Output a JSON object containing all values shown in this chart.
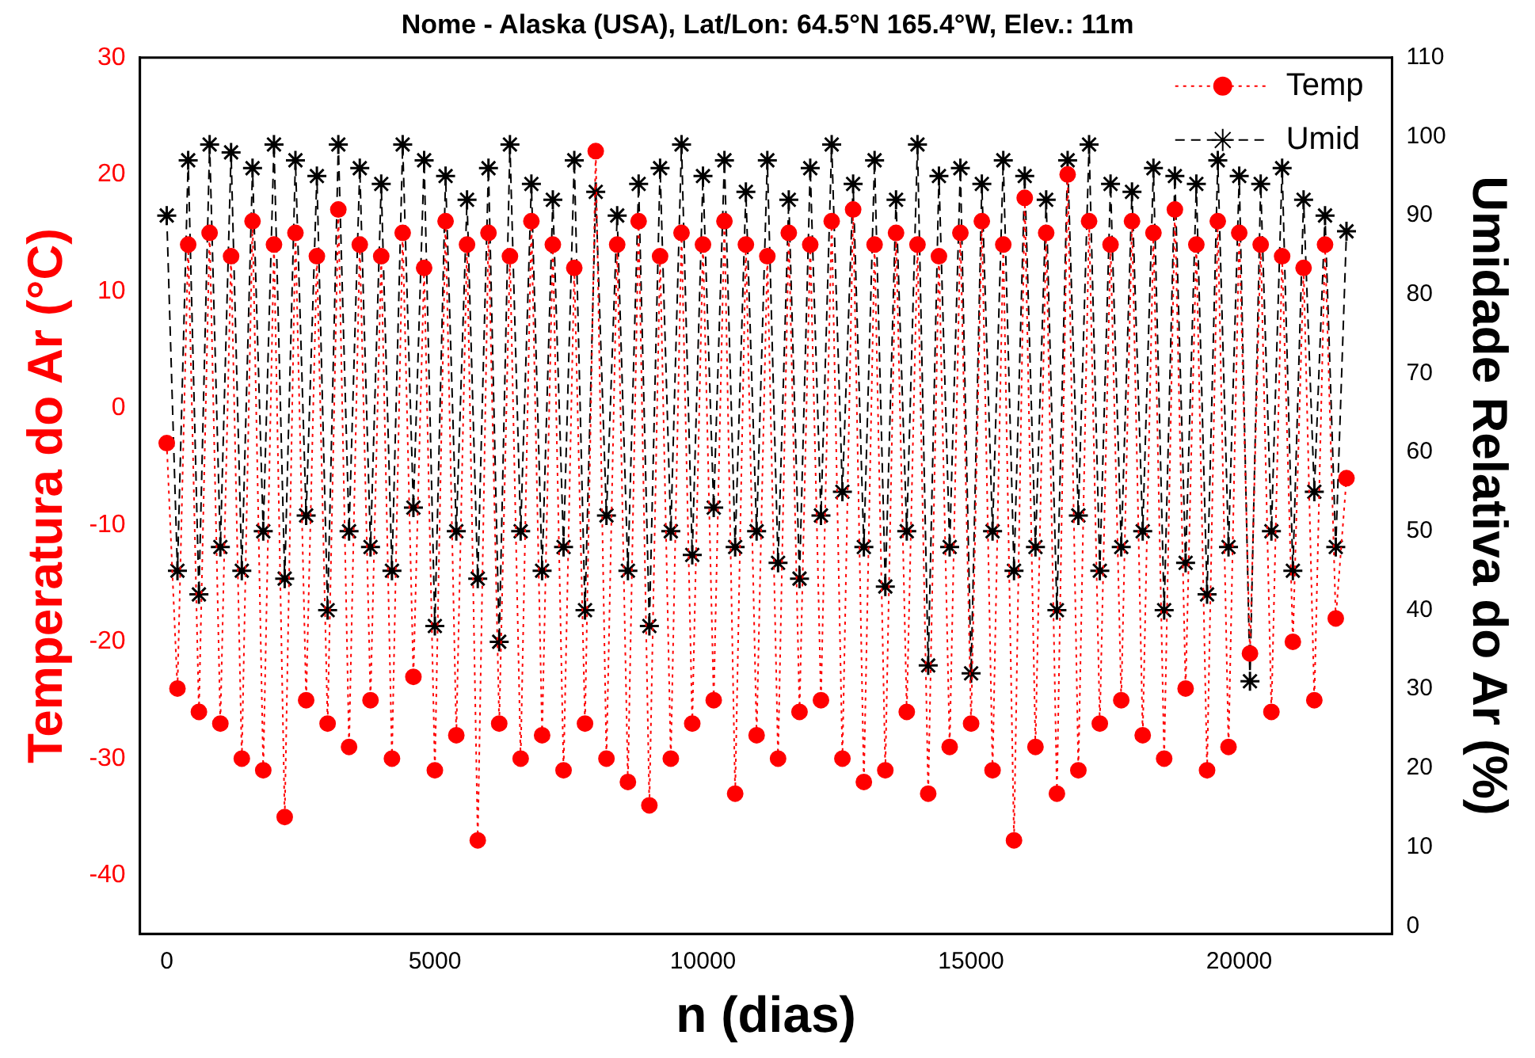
{
  "chart_data": {
    "type": "line",
    "title": "Nome - Alaska (USA), Lat/Lon: 64.5°N 165.4°W, Elev.: 11m",
    "xlabel": "n (dias)",
    "ylabel": "Temperatura do Ar (°C)",
    "y2label": "Umidade Relativa do Ar (%)",
    "x": [
      0,
      200,
      400,
      600,
      800,
      1000,
      1200,
      1400,
      1600,
      1800,
      2000,
      2200,
      2400,
      2600,
      2800,
      3000,
      3200,
      3400,
      3600,
      3800,
      4000,
      4200,
      4400,
      4600,
      4800,
      5000,
      5200,
      5400,
      5600,
      5800,
      6000,
      6200,
      6400,
      6600,
      6800,
      7000,
      7200,
      7400,
      7600,
      7800,
      8000,
      8200,
      8400,
      8600,
      8800,
      9000,
      9200,
      9400,
      9600,
      9800,
      10000,
      10200,
      10400,
      10600,
      10800,
      11000,
      11200,
      11400,
      11600,
      11800,
      12000,
      12200,
      12400,
      12600,
      12800,
      13000,
      13200,
      13400,
      13600,
      13800,
      14000,
      14200,
      14400,
      14600,
      14800,
      15000,
      15200,
      15400,
      15600,
      15800,
      16000,
      16200,
      16400,
      16600,
      16800,
      17000,
      17200,
      17400,
      17600,
      17800,
      18000,
      18200,
      18400,
      18600,
      18800,
      19000,
      19200,
      19400,
      19600,
      19800,
      20000,
      20200,
      20400,
      20600,
      20800,
      21000,
      21200,
      21400,
      21600,
      21800,
      22000
    ],
    "xlim": [
      -500,
      22850
    ],
    "xticks": [
      0,
      5000,
      10000,
      15000,
      20000
    ],
    "ylim": [
      -45,
      30
    ],
    "yticks": [
      -40,
      -30,
      -20,
      -10,
      0,
      10,
      20,
      30
    ],
    "y2lim": [
      -1,
      110
    ],
    "y2ticks": [
      0,
      10,
      20,
      30,
      40,
      50,
      60,
      70,
      80,
      90,
      100,
      110
    ],
    "legend": "top right",
    "grid": false,
    "series": [
      {
        "name": "Temp",
        "color": "#ff0000",
        "marker": "circle",
        "line_style": "dotted",
        "values": [
          -3,
          -24,
          14,
          -26,
          15,
          -27,
          13,
          -30,
          16,
          -31,
          14,
          -35,
          15,
          -25,
          13,
          -27,
          17,
          -29,
          14,
          -25,
          13,
          -30,
          15,
          -23,
          12,
          -31,
          16,
          -28,
          14,
          -37,
          15,
          -27,
          13,
          -30,
          16,
          -28,
          14,
          -31,
          12,
          -27,
          22,
          -30,
          14,
          -32,
          16,
          -34,
          13,
          -30,
          15,
          -27,
          14,
          -25,
          16,
          -33,
          14,
          -28,
          13,
          -30,
          15,
          -26,
          14,
          -25,
          16,
          -30,
          17,
          -32,
          14,
          -31,
          15,
          -26,
          14,
          -33,
          13,
          -29,
          15,
          -27,
          16,
          -31,
          14,
          -37,
          18,
          -29,
          15,
          -33,
          20,
          -31,
          16,
          -27,
          14,
          -25,
          16,
          -28,
          15,
          -30,
          17,
          -24,
          14,
          -31,
          16,
          -29,
          15,
          -21,
          14,
          -26,
          13,
          -20,
          12,
          -25,
          14,
          -18,
          -6
        ]
      },
      {
        "name": "Umid",
        "color": "#000000",
        "marker": "cross",
        "line_style": "dashed",
        "axis": "y2",
        "values": [
          90,
          45,
          97,
          42,
          99,
          48,
          98,
          45,
          96,
          50,
          99,
          44,
          97,
          52,
          95,
          40,
          99,
          50,
          96,
          48,
          94,
          45,
          99,
          53,
          97,
          38,
          95,
          50,
          92,
          44,
          96,
          36,
          99,
          50,
          94,
          45,
          92,
          48,
          97,
          40,
          93,
          52,
          90,
          45,
          94,
          38,
          96,
          50,
          99,
          47,
          95,
          53,
          97,
          48,
          93,
          50,
          97,
          46,
          92,
          44,
          96,
          52,
          99,
          55,
          94,
          48,
          97,
          43,
          92,
          50,
          99,
          33,
          95,
          48,
          96,
          32,
          94,
          50,
          97,
          45,
          95,
          48,
          92,
          40,
          97,
          52,
          99,
          45,
          94,
          48,
          93,
          50,
          96,
          40,
          95,
          46,
          94,
          42,
          97,
          48,
          95,
          31,
          94,
          50,
          96,
          45,
          92,
          55,
          90,
          48,
          88
        ]
      }
    ]
  }
}
